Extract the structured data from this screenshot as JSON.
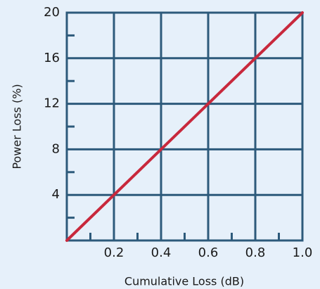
{
  "chart_data": {
    "type": "line",
    "x_label": "Cumulative Loss (dB)",
    "y_label": "Power Loss (%)",
    "x": [
      0,
      1
    ],
    "values": [
      0,
      20
    ],
    "color": "#c8283c",
    "xlim": [
      0,
      1
    ],
    "ylim": [
      0,
      20
    ],
    "xticks": [
      0.2,
      0.4,
      0.6,
      0.8,
      {
        "value": 1,
        "label": "1.0"
      }
    ],
    "yticks": [
      4,
      8,
      12,
      16,
      20
    ],
    "xminorticks": [
      0.1,
      0.3,
      0.5,
      0.7,
      0.9
    ],
    "yminorticks": [
      2,
      6,
      10,
      14,
      18
    ],
    "grid": true
  }
}
